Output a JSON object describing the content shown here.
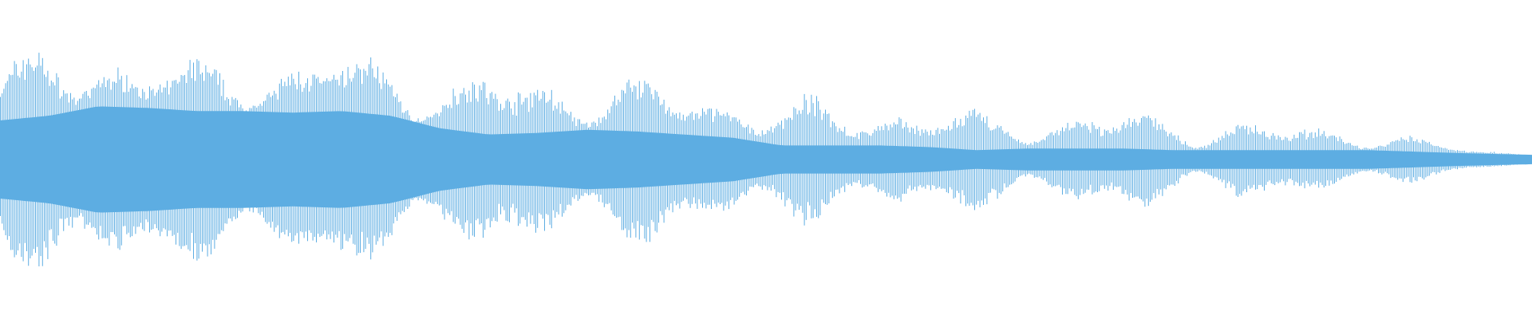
{
  "chart_data": {
    "type": "area",
    "kind": "audio waveform",
    "title": "",
    "xlabel": "",
    "ylabel": "",
    "axes_visible": false,
    "grid": false,
    "legend": "none",
    "ylim": [
      -1,
      1
    ],
    "color": "#5dade2",
    "symmetric": true,
    "envelope": {
      "x": [
        0,
        0.032,
        0.064,
        0.096,
        0.128,
        0.159,
        0.191,
        0.223,
        0.255,
        0.287,
        0.319,
        0.351,
        0.383,
        0.415,
        0.446,
        0.478,
        0.51,
        0.542,
        0.574,
        0.606,
        0.638,
        0.67,
        0.702,
        0.734,
        0.765,
        0.797,
        0.829,
        0.861,
        0.893,
        0.925,
        0.957,
        1.0
      ],
      "peak": [
        0.72,
        0.81,
        0.87,
        0.69,
        0.72,
        0.69,
        0.72,
        0.81,
        0.75,
        0.6,
        0.66,
        0.66,
        0.6,
        0.62,
        0.56,
        0.5,
        0.44,
        0.44,
        0.44,
        0.41,
        0.34,
        0.37,
        0.37,
        0.37,
        0.34,
        0.31,
        0.28,
        0.27,
        0.22,
        0.16,
        0.08,
        0.03
      ],
      "body": [
        0.25,
        0.28,
        0.34,
        0.33,
        0.31,
        0.31,
        0.3,
        0.31,
        0.28,
        0.2,
        0.16,
        0.17,
        0.19,
        0.18,
        0.16,
        0.14,
        0.09,
        0.09,
        0.09,
        0.08,
        0.06,
        0.07,
        0.07,
        0.07,
        0.06,
        0.06,
        0.06,
        0.06,
        0.06,
        0.05,
        0.04,
        0.03
      ]
    }
  }
}
